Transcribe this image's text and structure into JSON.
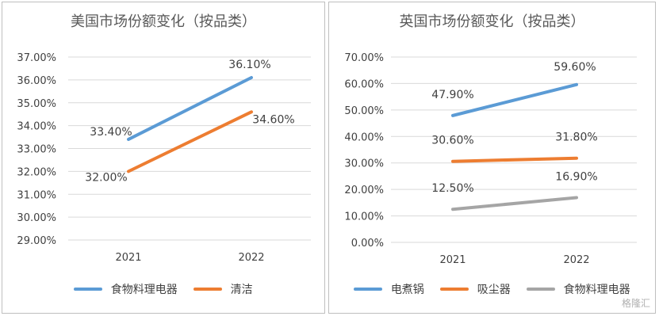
{
  "chart_data": [
    {
      "type": "line",
      "title": "美国市场份额变化（按品类）",
      "categories": [
        "2021",
        "2022"
      ],
      "ylim": [
        29,
        37
      ],
      "yticks": [
        "29.00%",
        "30.00%",
        "31.00%",
        "32.00%",
        "33.00%",
        "34.00%",
        "35.00%",
        "36.00%",
        "37.00%"
      ],
      "ytick_values": [
        29,
        30,
        31,
        32,
        33,
        34,
        35,
        36,
        37
      ],
      "grid": true,
      "legend_position": "bottom",
      "series": [
        {
          "name": "食物料理电器",
          "values": [
            33.4,
            36.1
          ],
          "labels": [
            "33.40%",
            "36.10%"
          ],
          "color": "#5b9bd5"
        },
        {
          "name": "清洁",
          "values": [
            32.0,
            34.6
          ],
          "labels": [
            "32.00%",
            "34.60%"
          ],
          "color": "#ed7d31"
        }
      ]
    },
    {
      "type": "line",
      "title": "英国市场份额变化（按品类）",
      "categories": [
        "2021",
        "2022"
      ],
      "ylim": [
        0,
        70
      ],
      "yticks": [
        "0.00%",
        "10.00%",
        "20.00%",
        "30.00%",
        "40.00%",
        "50.00%",
        "60.00%",
        "70.00%"
      ],
      "ytick_values": [
        0,
        10,
        20,
        30,
        40,
        50,
        60,
        70
      ],
      "grid": true,
      "legend_position": "bottom",
      "series": [
        {
          "name": "电煮锅",
          "values": [
            47.9,
            59.6
          ],
          "labels": [
            "47.90%",
            "59.60%"
          ],
          "color": "#5b9bd5"
        },
        {
          "name": "吸尘器",
          "values": [
            30.6,
            31.8
          ],
          "labels": [
            "30.60%",
            "31.80%"
          ],
          "color": "#ed7d31"
        },
        {
          "name": "食物料理电器",
          "values": [
            12.5,
            16.9
          ],
          "labels": [
            "12.50%",
            "16.90%"
          ],
          "color": "#a5a5a5"
        }
      ]
    }
  ],
  "watermark": "格隆汇"
}
